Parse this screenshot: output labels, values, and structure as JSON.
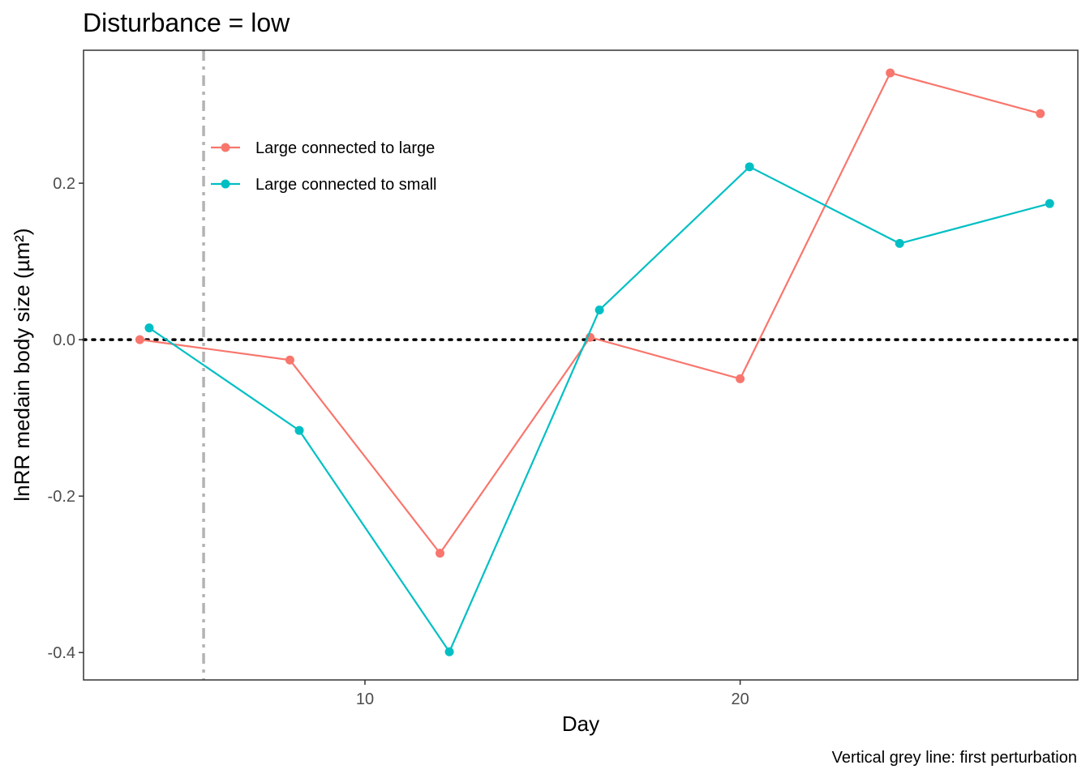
{
  "chart_data": {
    "type": "line",
    "title": "Disturbance = low",
    "xlabel": "Day",
    "ylabel": "lnRR medain body size (µm²)",
    "caption": "Vertical grey line: first perturbation",
    "xlim": [
      2.5,
      29.0
    ],
    "ylim": [
      -0.435,
      0.37
    ],
    "x_ticks": [
      {
        "value": 10,
        "label": "10"
      },
      {
        "value": 20,
        "label": "20"
      }
    ],
    "y_ticks": [
      {
        "value": -0.4,
        "label": "-0.4"
      },
      {
        "value": -0.2,
        "label": "-0.2"
      },
      {
        "value": 0.0,
        "label": "0.0"
      },
      {
        "value": 0.2,
        "label": "0.2"
      }
    ],
    "reference_lines": {
      "horizontal_y": 0.0,
      "horizontal_style": "dotted",
      "horizontal_color": "#000000",
      "vertical_x": 5.7,
      "vertical_style": "dashdot",
      "vertical_color": "#b3b3b3"
    },
    "grid": false,
    "legend_position": "top-left",
    "series": [
      {
        "name": "Large connected to large",
        "color": "#F8766D",
        "x": [
          4.0,
          8.0,
          12.0,
          16.0,
          20.0,
          24.0,
          28.0
        ],
        "y": [
          0.0,
          -0.026,
          -0.273,
          0.003,
          -0.05,
          0.341,
          0.289
        ]
      },
      {
        "name": "Large connected to small",
        "color": "#00BFC4",
        "x": [
          4.25,
          8.25,
          12.25,
          16.25,
          20.25,
          24.25,
          28.25
        ],
        "y": [
          0.015,
          -0.116,
          -0.399,
          0.038,
          0.221,
          0.123,
          0.174
        ]
      }
    ]
  }
}
